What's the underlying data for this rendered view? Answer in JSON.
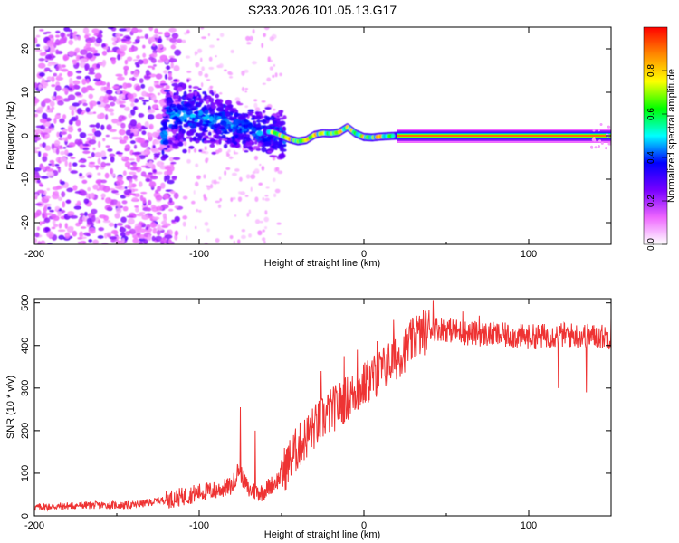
{
  "title": "S233.2026.101.05.13.G17",
  "colors": {
    "line": "#ee3333",
    "frame": "#000000",
    "background": "#ffffff"
  },
  "chart_data": [
    {
      "type": "heatmap",
      "name": "spectrogram",
      "xlabel": "Height of straight line (km)",
      "ylabel": "Frequency (Hz)",
      "xlim": [
        -200,
        150
      ],
      "ylim": [
        -25,
        25
      ],
      "x_ticks": [
        -200,
        -100,
        0,
        100
      ],
      "x_tick_labels": [
        "-200",
        "-100",
        "0",
        "100"
      ],
      "y_ticks": [
        20,
        10,
        0,
        -10,
        -20
      ],
      "y_tick_labels": [
        "20",
        "10",
        "0",
        "-10",
        "-20"
      ],
      "colorbar": {
        "label": "Normalized spectral amplitude",
        "range": [
          0,
          1
        ],
        "ticks": [
          0,
          0.2,
          0.4,
          0.6,
          0.8
        ],
        "tick_labels": [
          "0.0",
          "0.2",
          "0.4",
          "0.6",
          "0.8"
        ],
        "colors": [
          "#ffffff",
          "#ee66ff",
          "#7700ff",
          "#0000ff",
          "#00ffff",
          "#00ff00",
          "#ffff00",
          "#ff8800",
          "#ff0000"
        ]
      },
      "features": {
        "noise_region_x": [
          -200,
          -112
        ],
        "transition_region_x": [
          -122,
          -48
        ],
        "ridge_start_x": -48,
        "ridge_end_x": 150,
        "ridge_frequency": [
          [
            -120,
            5.2
          ],
          [
            -110,
            5.0
          ],
          [
            -100,
            4.4
          ],
          [
            -90,
            3.5
          ],
          [
            -80,
            2.5
          ],
          [
            -70,
            1.4
          ],
          [
            -60,
            1.0
          ],
          [
            -55,
            0.8
          ],
          [
            -50,
            0.0
          ],
          [
            -45,
            -0.8
          ],
          [
            -40,
            -1.3
          ],
          [
            -35,
            -1.0
          ],
          [
            -30,
            0.2
          ],
          [
            -25,
            0.6
          ],
          [
            -20,
            0.5
          ],
          [
            -15,
            0.8
          ],
          [
            -10,
            2.0
          ],
          [
            -5,
            0.5
          ],
          [
            0,
            -0.3
          ],
          [
            5,
            -0.4
          ],
          [
            10,
            -0.2
          ],
          [
            20,
            0.0
          ],
          [
            150,
            0.0
          ]
        ]
      }
    },
    {
      "type": "line",
      "name": "snr",
      "xlabel": "Height of straight line (km)",
      "ylabel": "SNR (10 * v/v)",
      "xlim": [
        -200,
        150
      ],
      "ylim": [
        0,
        510
      ],
      "x_ticks": [
        -200,
        -100,
        0,
        100
      ],
      "x_tick_labels": [
        "-200",
        "-100",
        "0",
        "100"
      ],
      "y_ticks": [
        0,
        100,
        200,
        300,
        400,
        500
      ],
      "y_tick_labels": [
        "0",
        "100",
        "200",
        "300",
        "400",
        "500"
      ],
      "series": [
        {
          "name": "SNR",
          "x_start": -200,
          "x_end": 150,
          "x_step": 0.25,
          "envelope": [
            [
              -200,
              20
            ],
            [
              -170,
              25
            ],
            [
              -140,
              25
            ],
            [
              -125,
              35
            ],
            [
              -110,
              45
            ],
            [
              -100,
              55
            ],
            [
              -90,
              60
            ],
            [
              -80,
              70
            ],
            [
              -76,
              110
            ],
            [
              -70,
              60
            ],
            [
              -62,
              55
            ],
            [
              -52,
              85
            ],
            [
              -42,
              150
            ],
            [
              -32,
              200
            ],
            [
              -22,
              240
            ],
            [
              -12,
              270
            ],
            [
              -2,
              300
            ],
            [
              10,
              340
            ],
            [
              22,
              380
            ],
            [
              32,
              420
            ],
            [
              40,
              440
            ],
            [
              48,
              440
            ],
            [
              60,
              430
            ],
            [
              80,
              425
            ],
            [
              100,
              420
            ],
            [
              120,
              425
            ],
            [
              150,
              420
            ]
          ],
          "spikes": [
            [
              -75,
              255
            ],
            [
              -66,
              200
            ],
            [
              -26,
              340
            ],
            [
              -12,
              375
            ],
            [
              -4,
              390
            ],
            [
              8,
              410
            ],
            [
              18,
              460
            ],
            [
              32,
              470
            ],
            [
              42,
              505
            ],
            [
              60,
              480
            ],
            [
              70,
              470
            ],
            [
              118,
              300
            ],
            [
              135,
              290
            ],
            [
              150,
              465
            ]
          ]
        }
      ]
    }
  ]
}
